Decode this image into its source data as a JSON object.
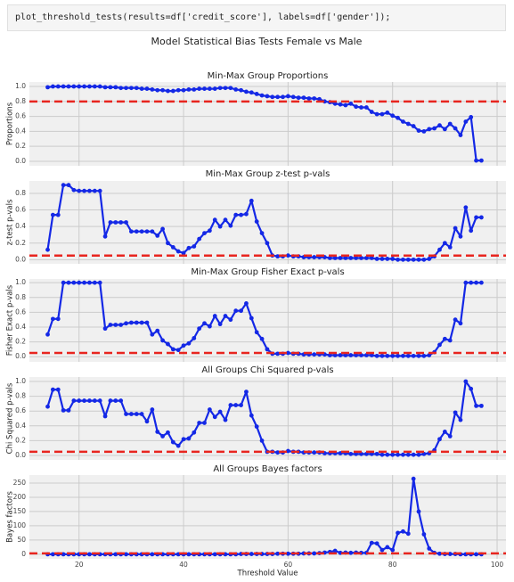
{
  "code": "plot_threshold_tests(results=df['credit_score'], labels=df['gender']);",
  "title": "Model Statistical Bias Tests Female vs Male",
  "chart_data": [
    {
      "type": "line",
      "title": "Min-Max Group Proportions",
      "ylabel": "Proportions",
      "color": "#1428e6",
      "grid": true,
      "reference_line": {
        "value": 0.8,
        "color": "#e8251f"
      },
      "xlim": [
        10.5,
        101.7
      ],
      "xticks": [
        20,
        40,
        60,
        80,
        100
      ],
      "ylim": [
        -0.06,
        1.06
      ],
      "yticks": [
        {
          "value": 0,
          "label": "0.0"
        },
        {
          "value": 0.2,
          "label": "0.2"
        },
        {
          "value": 0.4,
          "label": "0.4"
        },
        {
          "value": 0.6,
          "label": "0.6"
        },
        {
          "value": 0.8,
          "label": "0.8"
        },
        {
          "value": 1,
          "label": "1.0"
        }
      ],
      "x": [
        14,
        15,
        16,
        17,
        18,
        19,
        20,
        21,
        22,
        23,
        24,
        25,
        26,
        27,
        28,
        29,
        30,
        31,
        32,
        33,
        34,
        35,
        36,
        37,
        38,
        39,
        40,
        41,
        42,
        43,
        44,
        45,
        46,
        47,
        48,
        49,
        50,
        51,
        52,
        53,
        54,
        55,
        56,
        57,
        58,
        59,
        60,
        61,
        62,
        63,
        64,
        65,
        66,
        67,
        68,
        69,
        70,
        71,
        72,
        73,
        74,
        75,
        76,
        77,
        78,
        79,
        80,
        81,
        82,
        83,
        84,
        85,
        86,
        87,
        88,
        89,
        90,
        91,
        92,
        93,
        94,
        95,
        96,
        97
      ],
      "values": [
        0.99,
        1.0,
        1.0,
        1.0,
        1.0,
        1.0,
        1.0,
        1.0,
        1.0,
        1.0,
        1.0,
        0.99,
        0.99,
        0.99,
        0.98,
        0.98,
        0.98,
        0.98,
        0.97,
        0.97,
        0.96,
        0.95,
        0.95,
        0.94,
        0.94,
        0.95,
        0.95,
        0.96,
        0.96,
        0.97,
        0.97,
        0.97,
        0.97,
        0.98,
        0.98,
        0.98,
        0.96,
        0.95,
        0.93,
        0.92,
        0.9,
        0.88,
        0.87,
        0.86,
        0.86,
        0.86,
        0.87,
        0.86,
        0.85,
        0.85,
        0.84,
        0.84,
        0.83,
        0.8,
        0.79,
        0.77,
        0.76,
        0.75,
        0.77,
        0.73,
        0.72,
        0.72,
        0.66,
        0.63,
        0.63,
        0.65,
        0.61,
        0.58,
        0.53,
        0.5,
        0.47,
        0.41,
        0.4,
        0.43,
        0.44,
        0.48,
        0.43,
        0.5,
        0.44,
        0.35,
        0.53,
        0.59,
        0.01,
        0.01
      ]
    },
    {
      "type": "line",
      "title": "Min-Max Group z-test p-vals",
      "ylabel": "z-test p-vals",
      "color": "#1428e6",
      "grid": true,
      "reference_line": {
        "value": 0.05,
        "color": "#e8251f"
      },
      "xlim": [
        10.5,
        101.7
      ],
      "xticks": [
        20,
        40,
        60,
        80,
        100
      ],
      "ylim": [
        -0.05,
        0.95
      ],
      "yticks": [
        {
          "value": 0,
          "label": "0.0"
        },
        {
          "value": 0.2,
          "label": "0.2"
        },
        {
          "value": 0.4,
          "label": "0.4"
        },
        {
          "value": 0.6,
          "label": "0.6"
        },
        {
          "value": 0.8,
          "label": "0.8"
        }
      ],
      "x": [
        14,
        15,
        16,
        17,
        18,
        19,
        20,
        21,
        22,
        23,
        24,
        25,
        26,
        27,
        28,
        29,
        30,
        31,
        32,
        33,
        34,
        35,
        36,
        37,
        38,
        39,
        40,
        41,
        42,
        43,
        44,
        45,
        46,
        47,
        48,
        49,
        50,
        51,
        52,
        53,
        54,
        55,
        56,
        57,
        58,
        59,
        60,
        61,
        62,
        63,
        64,
        65,
        66,
        67,
        68,
        69,
        70,
        71,
        72,
        73,
        74,
        75,
        76,
        77,
        78,
        79,
        80,
        81,
        82,
        83,
        84,
        85,
        86,
        87,
        88,
        89,
        90,
        91,
        92,
        93,
        94,
        95,
        96,
        97
      ],
      "values": [
        0.12,
        0.54,
        0.54,
        0.9,
        0.9,
        0.84,
        0.83,
        0.83,
        0.83,
        0.83,
        0.83,
        0.28,
        0.45,
        0.45,
        0.45,
        0.45,
        0.34,
        0.34,
        0.34,
        0.34,
        0.34,
        0.29,
        0.37,
        0.2,
        0.15,
        0.1,
        0.08,
        0.14,
        0.16,
        0.25,
        0.32,
        0.35,
        0.48,
        0.4,
        0.48,
        0.41,
        0.54,
        0.54,
        0.55,
        0.71,
        0.46,
        0.32,
        0.2,
        0.05,
        0.04,
        0.04,
        0.05,
        0.04,
        0.04,
        0.03,
        0.03,
        0.03,
        0.03,
        0.03,
        0.02,
        0.02,
        0.02,
        0.02,
        0.02,
        0.02,
        0.02,
        0.02,
        0.02,
        0.01,
        0.01,
        0.01,
        0.01,
        0.0,
        0.0,
        0.0,
        0.0,
        0.0,
        0.0,
        0.01,
        0.04,
        0.12,
        0.2,
        0.15,
        0.38,
        0.28,
        0.63,
        0.35,
        0.51,
        0.51
      ]
    },
    {
      "type": "line",
      "title": "Min-Max Group Fisher Exact p-vals",
      "ylabel": "Fisher Exact p-vals",
      "color": "#1428e6",
      "grid": true,
      "reference_line": {
        "value": 0.05,
        "color": "#e8251f"
      },
      "xlim": [
        10.5,
        101.7
      ],
      "xticks": [
        20,
        40,
        60,
        80,
        100
      ],
      "ylim": [
        -0.07,
        1.05
      ],
      "yticks": [
        {
          "value": 0,
          "label": "0.0"
        },
        {
          "value": 0.2,
          "label": "0.2"
        },
        {
          "value": 0.4,
          "label": "0.4"
        },
        {
          "value": 0.6,
          "label": "0.6"
        },
        {
          "value": 0.8,
          "label": "0.8"
        },
        {
          "value": 1,
          "label": "1.0"
        }
      ],
      "x": [
        14,
        15,
        16,
        17,
        18,
        19,
        20,
        21,
        22,
        23,
        24,
        25,
        26,
        27,
        28,
        29,
        30,
        31,
        32,
        33,
        34,
        35,
        36,
        37,
        38,
        39,
        40,
        41,
        42,
        43,
        44,
        45,
        46,
        47,
        48,
        49,
        50,
        51,
        52,
        53,
        54,
        55,
        56,
        57,
        58,
        59,
        60,
        61,
        62,
        63,
        64,
        65,
        66,
        67,
        68,
        69,
        70,
        71,
        72,
        73,
        74,
        75,
        76,
        77,
        78,
        79,
        80,
        81,
        82,
        83,
        84,
        85,
        86,
        87,
        88,
        89,
        90,
        91,
        92,
        93,
        94,
        95,
        96,
        97
      ],
      "values": [
        0.3,
        0.51,
        0.51,
        1.0,
        1.0,
        1.0,
        1.0,
        1.0,
        1.0,
        1.0,
        1.0,
        0.38,
        0.43,
        0.43,
        0.43,
        0.45,
        0.46,
        0.46,
        0.46,
        0.46,
        0.3,
        0.35,
        0.22,
        0.17,
        0.1,
        0.09,
        0.15,
        0.18,
        0.25,
        0.38,
        0.45,
        0.41,
        0.55,
        0.44,
        0.55,
        0.5,
        0.62,
        0.62,
        0.72,
        0.52,
        0.33,
        0.24,
        0.1,
        0.04,
        0.04,
        0.04,
        0.05,
        0.04,
        0.04,
        0.03,
        0.03,
        0.03,
        0.03,
        0.03,
        0.02,
        0.02,
        0.02,
        0.02,
        0.02,
        0.02,
        0.02,
        0.02,
        0.02,
        0.01,
        0.01,
        0.01,
        0.01,
        0.01,
        0.01,
        0.01,
        0.01,
        0.01,
        0.01,
        0.02,
        0.06,
        0.16,
        0.24,
        0.22,
        0.5,
        0.45,
        1.0,
        1.0,
        1.0,
        1.0
      ]
    },
    {
      "type": "line",
      "title": "All Groups Chi Squared p-vals",
      "ylabel": "Chi Squared p-vals",
      "color": "#1428e6",
      "grid": true,
      "reference_line": {
        "value": 0.05,
        "color": "#e8251f"
      },
      "xlim": [
        10.5,
        101.7
      ],
      "xticks": [
        20,
        40,
        60,
        80,
        100
      ],
      "ylim": [
        -0.06,
        1.06
      ],
      "yticks": [
        {
          "value": 0,
          "label": "0.0"
        },
        {
          "value": 0.2,
          "label": "0.2"
        },
        {
          "value": 0.4,
          "label": "0.4"
        },
        {
          "value": 0.6,
          "label": "0.6"
        },
        {
          "value": 0.8,
          "label": "0.8"
        },
        {
          "value": 1,
          "label": "1.0"
        }
      ],
      "x": [
        14,
        15,
        16,
        17,
        18,
        19,
        20,
        21,
        22,
        23,
        24,
        25,
        26,
        27,
        28,
        29,
        30,
        31,
        32,
        33,
        34,
        35,
        36,
        37,
        38,
        39,
        40,
        41,
        42,
        43,
        44,
        45,
        46,
        47,
        48,
        49,
        50,
        51,
        52,
        53,
        54,
        55,
        56,
        57,
        58,
        59,
        60,
        61,
        62,
        63,
        64,
        65,
        66,
        67,
        68,
        69,
        70,
        71,
        72,
        73,
        74,
        75,
        76,
        77,
        78,
        79,
        80,
        81,
        82,
        83,
        84,
        85,
        86,
        87,
        88,
        89,
        90,
        91,
        92,
        93,
        94,
        95,
        96,
        97
      ],
      "values": [
        0.66,
        0.89,
        0.89,
        0.61,
        0.61,
        0.74,
        0.74,
        0.74,
        0.74,
        0.74,
        0.74,
        0.53,
        0.74,
        0.74,
        0.74,
        0.56,
        0.56,
        0.56,
        0.56,
        0.46,
        0.62,
        0.32,
        0.26,
        0.31,
        0.18,
        0.13,
        0.22,
        0.23,
        0.31,
        0.44,
        0.44,
        0.62,
        0.52,
        0.59,
        0.48,
        0.68,
        0.68,
        0.68,
        0.86,
        0.54,
        0.39,
        0.2,
        0.05,
        0.05,
        0.04,
        0.04,
        0.06,
        0.05,
        0.05,
        0.04,
        0.04,
        0.04,
        0.04,
        0.03,
        0.03,
        0.03,
        0.03,
        0.03,
        0.02,
        0.02,
        0.02,
        0.02,
        0.02,
        0.02,
        0.01,
        0.01,
        0.01,
        0.01,
        0.01,
        0.01,
        0.01,
        0.01,
        0.02,
        0.03,
        0.07,
        0.22,
        0.32,
        0.26,
        0.58,
        0.48,
        1.0,
        0.9,
        0.67,
        0.67
      ]
    },
    {
      "type": "line",
      "title": "All Groups Bayes factors",
      "ylabel": "Bayes factors",
      "xlabel": "Threshold Value",
      "color": "#1428e6",
      "grid": true,
      "reference_line": {
        "value": 3,
        "color": "#e8251f"
      },
      "xlim": [
        10.5,
        101.7
      ],
      "xticks": [
        20,
        40,
        60,
        80,
        100
      ],
      "show_xtick_labels": true,
      "ylim": [
        -16,
        278
      ],
      "yticks": [
        0,
        50,
        100,
        150,
        200,
        250
      ],
      "x": [
        14,
        15,
        16,
        17,
        18,
        19,
        20,
        21,
        22,
        23,
        24,
        25,
        26,
        27,
        28,
        29,
        30,
        31,
        32,
        33,
        34,
        35,
        36,
        37,
        38,
        39,
        40,
        41,
        42,
        43,
        44,
        45,
        46,
        47,
        48,
        49,
        50,
        51,
        52,
        53,
        54,
        55,
        56,
        57,
        58,
        59,
        60,
        61,
        62,
        63,
        64,
        65,
        66,
        67,
        68,
        69,
        70,
        71,
        72,
        73,
        74,
        75,
        76,
        77,
        78,
        79,
        80,
        81,
        82,
        83,
        84,
        85,
        86,
        87,
        88,
        89,
        90,
        91,
        92,
        93,
        94,
        95,
        96,
        97
      ],
      "values": [
        0,
        0,
        0,
        0,
        0,
        0,
        0,
        0,
        0,
        0,
        0,
        0,
        0,
        0,
        0,
        0,
        0,
        0,
        0,
        0,
        0,
        0,
        0,
        0,
        0,
        0,
        0,
        0,
        0,
        0,
        0,
        0,
        0,
        0,
        0,
        0,
        0,
        1,
        1,
        1,
        1,
        1,
        1,
        1,
        2,
        2,
        2,
        2,
        2,
        3,
        3,
        3,
        4,
        6,
        8,
        12,
        5,
        6,
        5,
        6,
        5,
        5,
        40,
        38,
        15,
        25,
        15,
        75,
        80,
        72,
        265,
        150,
        70,
        20,
        5,
        2,
        1,
        1,
        1,
        0,
        0,
        0,
        0,
        0
      ]
    }
  ]
}
